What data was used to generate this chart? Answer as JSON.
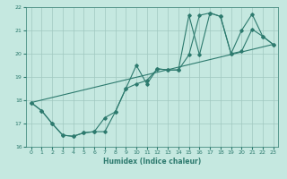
{
  "xlabel": "Humidex (Indice chaleur)",
  "xlim": [
    -0.5,
    23.5
  ],
  "ylim": [
    16,
    22
  ],
  "xticks": [
    0,
    1,
    2,
    3,
    4,
    5,
    6,
    7,
    8,
    9,
    10,
    11,
    12,
    13,
    14,
    15,
    16,
    17,
    18,
    19,
    20,
    21,
    22,
    23
  ],
  "yticks": [
    16,
    17,
    18,
    19,
    20,
    21,
    22
  ],
  "bg_color": "#c5e8e0",
  "grid_color": "#a0c8c0",
  "line_color": "#2d7a6e",
  "line1_x": [
    0,
    1,
    2,
    3,
    4,
    5,
    6,
    7,
    8,
    9,
    10,
    11,
    12,
    13,
    14,
    15,
    16,
    17,
    18,
    19,
    20,
    21,
    22,
    23
  ],
  "line1_y": [
    17.9,
    17.55,
    17.0,
    16.5,
    16.45,
    16.6,
    16.65,
    17.25,
    17.5,
    18.5,
    19.5,
    18.7,
    19.35,
    19.3,
    19.3,
    21.65,
    19.95,
    21.75,
    21.6,
    20.0,
    20.1,
    21.05,
    20.75,
    20.4
  ],
  "line2_x": [
    0,
    1,
    2,
    3,
    4,
    5,
    6,
    7,
    8,
    9,
    10,
    11,
    12,
    13,
    14,
    15,
    16,
    17,
    18,
    19,
    20,
    21,
    22,
    23
  ],
  "line2_y": [
    17.9,
    17.55,
    17.0,
    16.5,
    16.45,
    16.6,
    16.65,
    16.65,
    17.5,
    18.5,
    18.7,
    18.85,
    19.35,
    19.3,
    19.3,
    19.95,
    21.65,
    21.75,
    21.6,
    20.0,
    21.0,
    21.7,
    20.75,
    20.4
  ],
  "line3_x": [
    0,
    23
  ],
  "line3_y": [
    17.9,
    20.4
  ]
}
